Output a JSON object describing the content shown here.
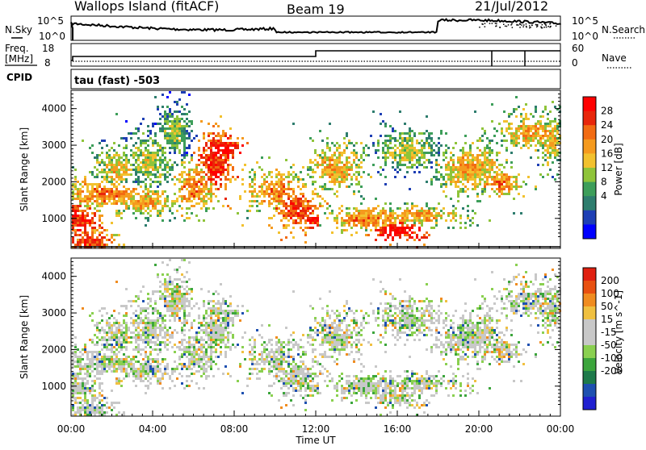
{
  "header": {
    "station": "Wallops Island (fitACF)",
    "beam": "Beam 19",
    "date": "21/Jul/2012"
  },
  "side_labels": {
    "nsky": "N.Sky",
    "nsearch": "N.Search",
    "freq": "Freq.",
    "freq_unit": "[MHz]",
    "nave": "Nave",
    "cpid": "CPID",
    "cpid_value": "tau (fast) -503"
  },
  "noise_panel": {
    "left_ticks": [
      "10^5",
      "10^0"
    ],
    "right_ticks": [
      "10^5",
      "10^0"
    ]
  },
  "freq_panel": {
    "left_ticks": [
      "18",
      "8"
    ],
    "right_ticks": [
      "60",
      "0"
    ]
  },
  "colors": {
    "power_scale": [
      "#0000ff",
      "#1e3fb4",
      "#2e7d6e",
      "#3d9e5a",
      "#8fc43a",
      "#f2c12e",
      "#f59a1e",
      "#f26b12",
      "#e8260a",
      "#ff0000"
    ],
    "velocity_scale": [
      "#2020d0",
      "#1e50b0",
      "#1e7a4a",
      "#3ca53c",
      "#8ad050",
      "#c8c8c8",
      "#c8c8c8",
      "#f0c040",
      "#f08c20",
      "#e85010",
      "#e02010"
    ]
  },
  "chart_data": [
    {
      "type": "heatmap",
      "name_hint": "power",
      "ylabel": "Slant Range [km]",
      "colorbar_label": "Power [dB]",
      "colorbar_ticks": [
        "28",
        "24",
        "20",
        "16",
        "12",
        "8",
        "4"
      ],
      "y_ticks": [
        "4000",
        "3000",
        "2000",
        "1000"
      ],
      "ylim": [
        180,
        4500
      ],
      "xlim_hours": [
        0,
        24
      ]
    },
    {
      "type": "heatmap",
      "name_hint": "velocity",
      "xlabel": "Time UT",
      "ylabel": "Slant Range [km]",
      "colorbar_label": "Velocity [m s^-1]",
      "colorbar_ticks": [
        "200",
        "100",
        "50",
        "15",
        "-15",
        "-50",
        "-100",
        "-200"
      ],
      "y_ticks": [
        "4000",
        "3000",
        "2000",
        "1000"
      ],
      "x_ticks": [
        "00:00",
        "04:00",
        "08:00",
        "12:00",
        "16:00",
        "20:00",
        "00:00"
      ],
      "ylim": [
        180,
        4500
      ],
      "xlim_hours": [
        0,
        24
      ]
    }
  ]
}
